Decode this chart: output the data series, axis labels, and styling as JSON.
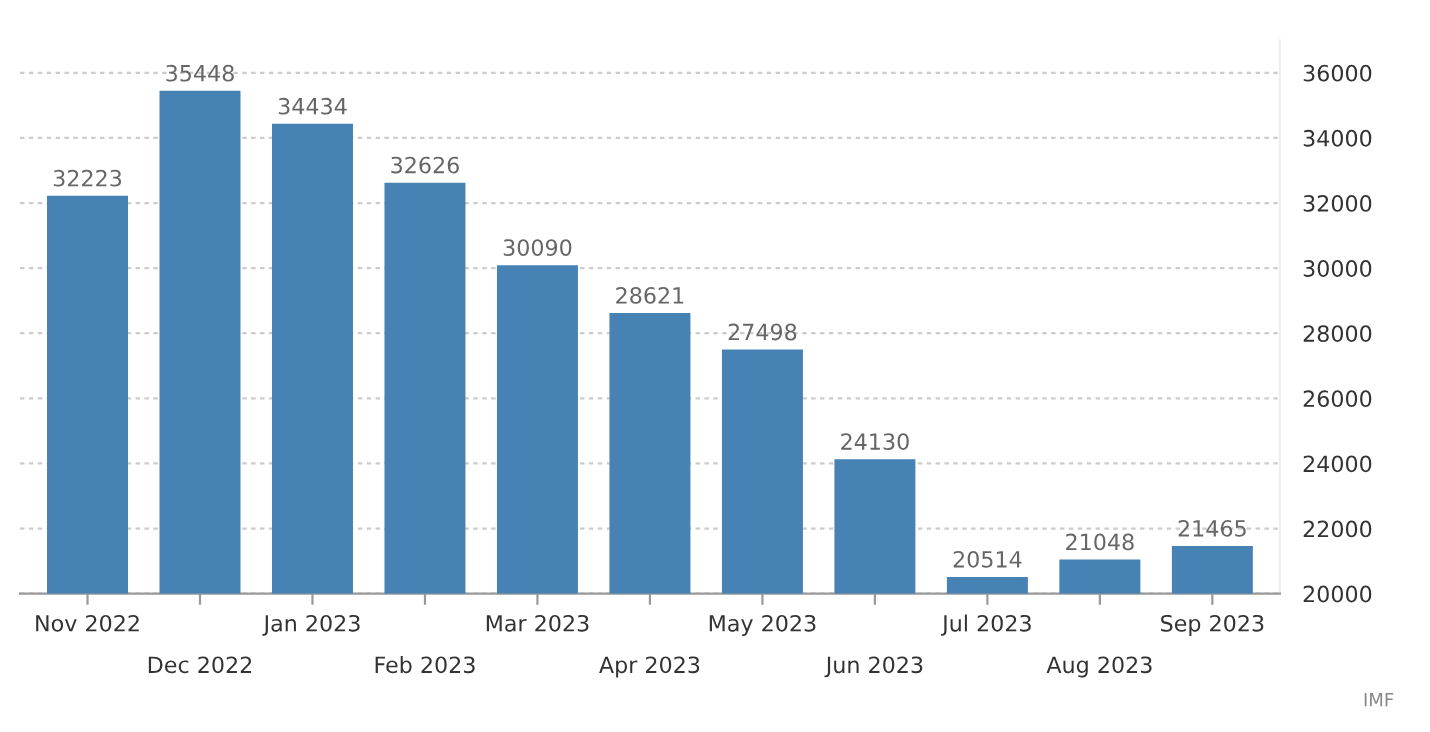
{
  "chart_data": {
    "type": "bar",
    "categories": [
      "Nov 2022",
      "Dec 2022",
      "Jan 2023",
      "Feb 2023",
      "Mar 2023",
      "Apr 2023",
      "May 2023",
      "Jun 2023",
      "Jul 2023",
      "Aug 2023",
      "Sep 2023"
    ],
    "values": [
      32223,
      35448,
      34434,
      32626,
      30090,
      28621,
      27498,
      24130,
      20514,
      21048,
      21465
    ],
    "color": "#4682b4",
    "ylim": [
      20000,
      37000
    ],
    "yticks": [
      20000,
      22000,
      24000,
      26000,
      28000,
      30000,
      32000,
      34000,
      36000
    ],
    "grid": "y",
    "data_labels": true,
    "annotations": [
      "IMF"
    ]
  }
}
